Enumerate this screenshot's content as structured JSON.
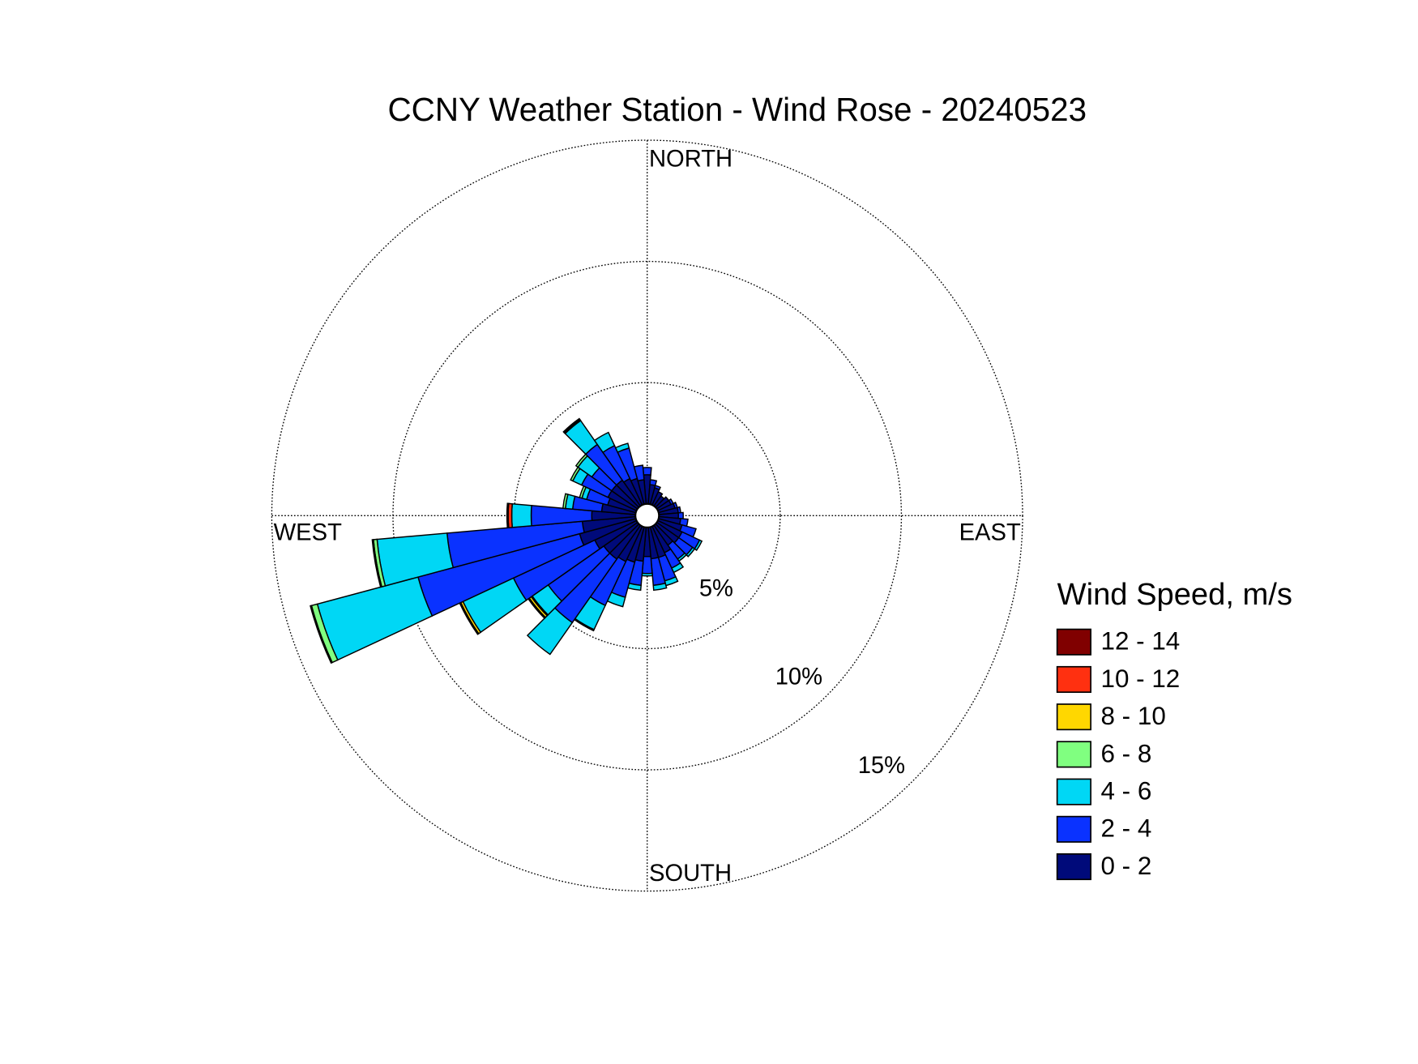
{
  "chart_data": {
    "type": "windrose",
    "title": "CCNY Weather Station - Wind Rose - 20240523",
    "legend_title": "Wind Speed, m/s",
    "directions": {
      "north": "NORTH",
      "east": "EAST",
      "south": "SOUTH",
      "west": "WEST"
    },
    "rlim": [
      0,
      15
    ],
    "rticks": [
      {
        "value": 5,
        "label": "5%"
      },
      {
        "value": 10,
        "label": "10%"
      },
      {
        "value": 15,
        "label": "15%"
      }
    ],
    "x": [
      0,
      10,
      20,
      30,
      40,
      50,
      60,
      70,
      80,
      90,
      100,
      110,
      120,
      130,
      140,
      150,
      160,
      170,
      180,
      190,
      200,
      210,
      220,
      230,
      240,
      250,
      260,
      270,
      280,
      290,
      300,
      310,
      320,
      330,
      340,
      350
    ],
    "series": [
      {
        "name": "0 - 2",
        "color": "#000a7a",
        "values": [
          1.2,
          0.8,
          0.7,
          0.6,
          0.5,
          0.6,
          0.6,
          0.7,
          0.8,
          0.8,
          0.9,
          1.0,
          1.1,
          1.1,
          1.0,
          1.2,
          1.3,
          1.3,
          1.2,
          1.4,
          1.5,
          1.6,
          1.7,
          1.7,
          1.9,
          2.4,
          2.2,
          1.8,
          1.4,
          1.2,
          1.3,
          1.3,
          1.3,
          1.2,
          1.1,
          1.0
        ]
      },
      {
        "name": "2 - 4",
        "color": "#0a32ff",
        "values": [
          0.3,
          0.2,
          0.1,
          0,
          0,
          0,
          0.1,
          0.1,
          0.1,
          0.2,
          0.3,
          0.6,
          0.8,
          0.7,
          0.7,
          0.7,
          1.0,
          1.1,
          0.7,
          1.0,
          1.5,
          2.0,
          3.2,
          2.8,
          3.7,
          6.9,
          5.6,
          2.5,
          1.2,
          0.9,
          1.2,
          1.0,
          1.8,
          1.5,
          1.3,
          0.6
        ]
      },
      {
        "name": "4 - 6",
        "color": "#00d7f5",
        "values": [
          0,
          0,
          0,
          0,
          0,
          0,
          0,
          0,
          0,
          0,
          0,
          0,
          0.1,
          0.1,
          0.1,
          0.2,
          0.2,
          0.2,
          0.1,
          0.2,
          0.4,
          1.1,
          1.6,
          0.8,
          2.3,
          4.3,
          2.9,
          0.8,
          0.3,
          0.2,
          0.4,
          0.7,
          1.2,
          0.6,
          0.2,
          0
        ]
      },
      {
        "name": "6 - 8",
        "color": "#80ff80",
        "values": [
          0,
          0,
          0,
          0,
          0,
          0,
          0,
          0,
          0,
          0,
          0,
          0,
          0,
          0,
          0,
          0,
          0,
          0,
          0,
          0,
          0,
          0,
          0,
          0.05,
          0,
          0.25,
          0.15,
          0,
          0.1,
          0.1,
          0.1,
          0.1,
          0,
          0,
          0,
          0
        ]
      },
      {
        "name": "8 - 10",
        "color": "#ffd700",
        "values": [
          0,
          0,
          0,
          0,
          0,
          0,
          0,
          0,
          0,
          0,
          0,
          0,
          0,
          0,
          0,
          0,
          0,
          0,
          0,
          0,
          0,
          0,
          0,
          0.1,
          0.1,
          0.05,
          0.05,
          0,
          0,
          0,
          0,
          0,
          0.05,
          0,
          0,
          0
        ]
      },
      {
        "name": "10 - 12",
        "color": "#ff3010",
        "values": [
          0,
          0,
          0,
          0,
          0,
          0,
          0,
          0,
          0,
          0,
          0,
          0,
          0,
          0,
          0,
          0,
          0,
          0,
          0,
          0,
          0,
          0,
          0,
          0,
          0.05,
          0,
          0,
          0.15,
          0,
          0,
          0,
          0,
          0,
          0,
          0,
          0
        ]
      },
      {
        "name": "12 - 14",
        "color": "#800000",
        "values": [
          0,
          0,
          0,
          0,
          0,
          0,
          0,
          0,
          0,
          0,
          0,
          0,
          0,
          0,
          0,
          0,
          0,
          0,
          0,
          0,
          0,
          0.05,
          0,
          0.05,
          0,
          0,
          0,
          0.05,
          0,
          0,
          0,
          0,
          0.05,
          0,
          0,
          0
        ]
      }
    ]
  }
}
